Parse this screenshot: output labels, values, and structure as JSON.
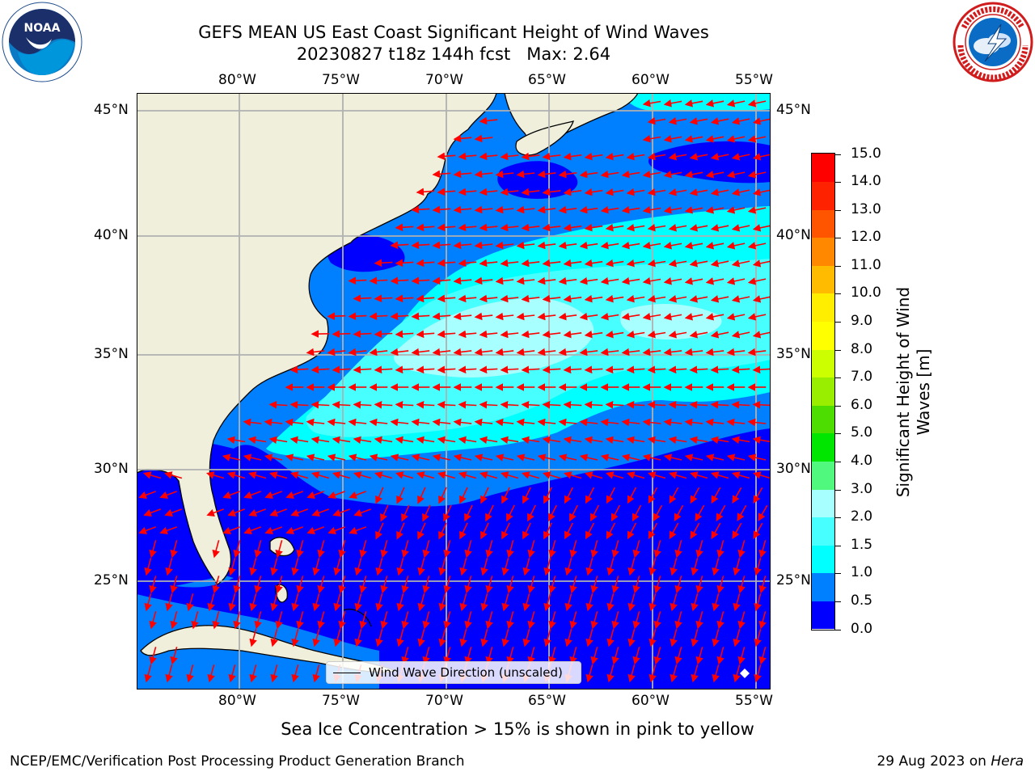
{
  "header": {
    "title_line1": "GEFS MEAN US East Coast Significant Height of Wind Waves",
    "title_line2": "20230827 t18z 144h fcst   Max: 2.64"
  },
  "logos": {
    "left": {
      "icon": "noaa-logo",
      "text": "NOAA"
    },
    "right": {
      "icon": "nws-logo"
    }
  },
  "map": {
    "projection": "plate-carree",
    "extent_lon": [
      -85,
      -54.3
    ],
    "extent_lat": [
      20.5,
      46
    ],
    "grid": true,
    "lon_ticks": [
      "80°W",
      "75°W",
      "70°W",
      "65°W",
      "60°W",
      "55°W"
    ],
    "lat_ticks": [
      "45°N",
      "40°N",
      "35°N",
      "30°N",
      "25°N"
    ],
    "max_value": 2.64,
    "arrow_color": "#ff0000"
  },
  "legend": {
    "label": "Wind Wave Direction (unscaled)"
  },
  "colorbar": {
    "title": "Significant Height of Wind Waves [m]",
    "title_line1": "Significant Height of Wind",
    "title_line2": "Waves [m]",
    "levels": [
      "0.0",
      "0.5",
      "1.0",
      "1.5",
      "2.0",
      "3.0",
      "4.0",
      "5.0",
      "6.0",
      "7.0",
      "8.0",
      "9.0",
      "10.0",
      "11.0",
      "12.0",
      "13.0",
      "14.0",
      "15.0"
    ],
    "colors": [
      "#0000ff",
      "#0080ff",
      "#00ffff",
      "#47ffff",
      "#a8ffff",
      "#50f87e",
      "#00e600",
      "#4ddd00",
      "#99ee00",
      "#ccff00",
      "#ffff00",
      "#ffee00",
      "#ffbb00",
      "#ff8800",
      "#ff5500",
      "#ff2200",
      "#ff0000"
    ]
  },
  "notes": {
    "sea_ice": "Sea Ice Concentration > 15% is shown in pink to yellow"
  },
  "footer": {
    "left": "NCEP/EMC/Verification Post Processing Product Generation Branch",
    "right_date": "29 Aug 2023 on ",
    "right_machine": "Hera"
  }
}
